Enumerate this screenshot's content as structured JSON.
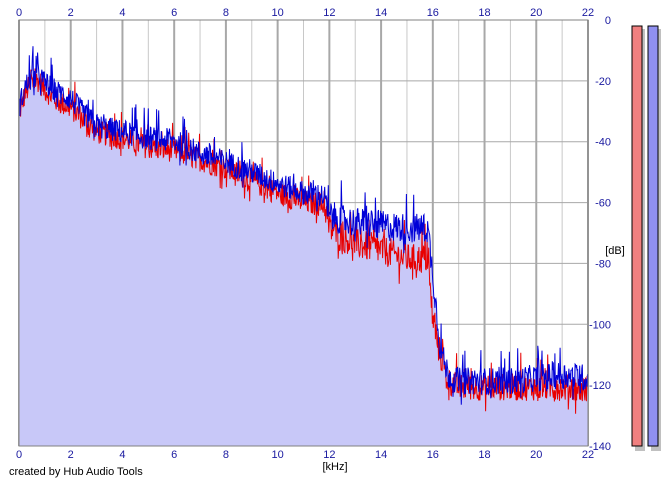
{
  "credit": "created by Hub Audio Tools",
  "colors": {
    "background": "#ffffff",
    "grid_major": "#a8a8a8",
    "grid_minor": "#c8c8c8",
    "fill": "#c8c8f8",
    "left_channel": "#e80000",
    "right_channel": "#0000d8",
    "tick_text": "#1a1aa0",
    "meter_red": "#f08080",
    "meter_blue": "#9090f0"
  },
  "chart_data": {
    "type": "line",
    "xlabel": "[kHz]",
    "ylabel": "[dB]",
    "xlim": [
      0,
      22
    ],
    "ylim": [
      -140,
      0
    ],
    "x_ticks": [
      "0",
      "2",
      "4",
      "6",
      "8",
      "10",
      "12",
      "14",
      "16",
      "18",
      "20",
      "22"
    ],
    "y_ticks": [
      "0",
      "-20",
      "-40",
      "-60",
      "-80",
      "-100",
      "-120",
      "-140"
    ],
    "grid": true,
    "legend": "none",
    "series": [
      {
        "color": "#e80000",
        "x": [
          0,
          0.25,
          0.5,
          0.75,
          1,
          1.5,
          2,
          2.5,
          3,
          4,
          5,
          6,
          7,
          8,
          9,
          10,
          11,
          11.8,
          12,
          13,
          14,
          15,
          15.8,
          16,
          16.3,
          16.6,
          17,
          18,
          19,
          20,
          21,
          22
        ],
        "values": [
          -32,
          -25,
          -22,
          -21,
          -24,
          -28,
          -30,
          -34,
          -38,
          -40,
          -43,
          -44,
          -47,
          -50,
          -54,
          -58,
          -61,
          -62,
          -70,
          -75,
          -77,
          -80,
          -80,
          -100,
          -112,
          -120,
          -122,
          -122,
          -122,
          -122,
          -122,
          -123
        ]
      },
      {
        "color": "#0000d8",
        "x": [
          0,
          0.25,
          0.5,
          0.75,
          1,
          1.5,
          2,
          2.5,
          3,
          4,
          5,
          6,
          7,
          8,
          9,
          10,
          11,
          11.8,
          12,
          13,
          14,
          15,
          15.8,
          16,
          16.3,
          16.6,
          17,
          18,
          19,
          20,
          21,
          22
        ],
        "values": [
          -30,
          -23,
          -20,
          -19,
          -22,
          -25,
          -27,
          -32,
          -36,
          -38,
          -40,
          -41,
          -45,
          -48,
          -51,
          -55,
          -58,
          -59,
          -66,
          -68,
          -69,
          -70,
          -70,
          -85,
          -110,
          -118,
          -120,
          -120,
          -120,
          -119,
          -118,
          -119
        ]
      }
    ]
  }
}
